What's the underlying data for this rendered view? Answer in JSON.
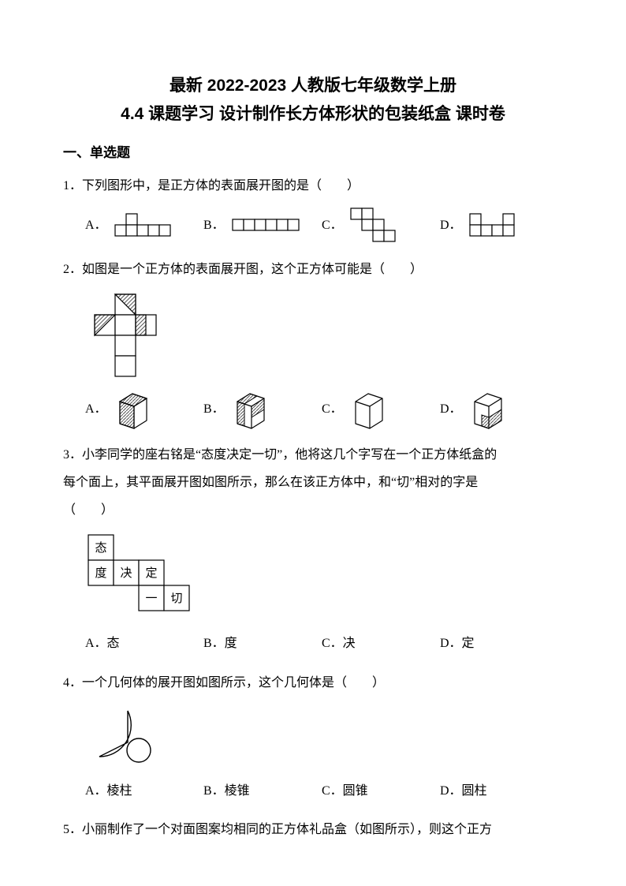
{
  "doc": {
    "title_line1": "最新 2022-2023 人教版七年级数学上册",
    "title_line2": "4.4 课题学习 设计制作长方体形状的包装纸盒 课时卷",
    "section1": "一、单选题"
  },
  "q1": {
    "text": "1．下列图形中，是正方体的表面展开图的是（　　）",
    "labels": {
      "a": "A．",
      "b": "B．",
      "c": "C．",
      "d": "D．"
    },
    "style": {
      "stroke": "#000000",
      "fill": "#ffffff",
      "sw": 1.2,
      "cell": 14
    }
  },
  "q2": {
    "text": "2．如图是一个正方体的表面展开图，这个正方体可能是（　　）",
    "labels": {
      "a": "A．",
      "b": "B．",
      "c": "C．",
      "d": "D．"
    },
    "net": {
      "stroke": "#000000",
      "sw": 1.2,
      "hatch": "#555555"
    },
    "cubes": {
      "stroke": "#000000",
      "sw": 1.2,
      "fill": "#ffffff",
      "hatch": "#555555"
    }
  },
  "q3": {
    "text1": "3．小李同学的座右铭是“态度决定一切”，他将这几个字写在一个正方体纸盒的",
    "text2": "每个面上，其平面展开图如图所示，那么在该正方体中，和“切”相对的字是",
    "text3": "（　　）",
    "net": {
      "cells": [
        {
          "r": 0,
          "c": 0,
          "ch": "态"
        },
        {
          "r": 1,
          "c": 0,
          "ch": "度"
        },
        {
          "r": 1,
          "c": 1,
          "ch": "决"
        },
        {
          "r": 1,
          "c": 2,
          "ch": "定"
        },
        {
          "r": 2,
          "c": 2,
          "ch": "一"
        },
        {
          "r": 2,
          "c": 3,
          "ch": "切"
        }
      ],
      "cell": 32,
      "stroke": "#000000",
      "sw": 1.2,
      "fontsize": 15
    },
    "labels": {
      "a": "A．态",
      "b": "B．度",
      "c": "C．决",
      "d": "D．定"
    }
  },
  "q4": {
    "text": "4．一个几何体的展开图如图所示，这个几何体是（　　）",
    "labels": {
      "a": "A．棱柱",
      "b": "B．棱锥",
      "c": "C．圆锥",
      "d": "D．圆柱"
    },
    "fig": {
      "stroke": "#000000",
      "sw": 1.2
    }
  },
  "q5": {
    "text": "5．小丽制作了一个对面图案均相同的正方体礼品盒（如图所示），则这个正方"
  }
}
